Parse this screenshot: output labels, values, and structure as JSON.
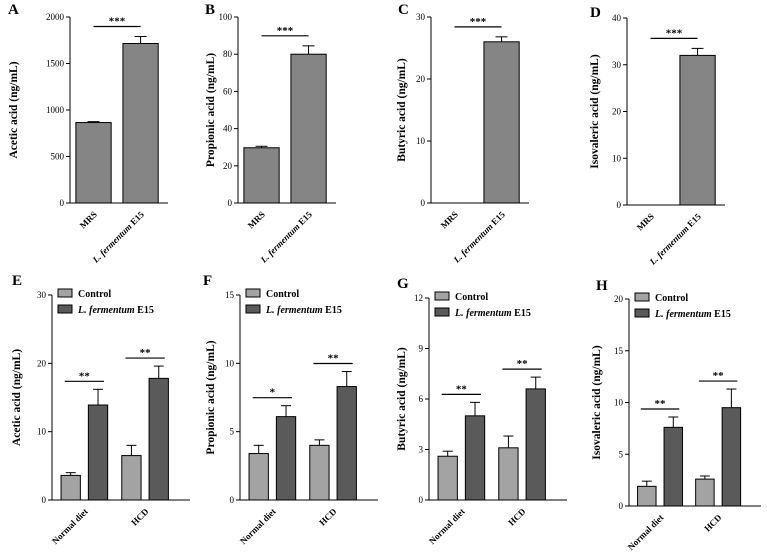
{
  "chart_data": [
    {
      "panel": "A",
      "type": "bar",
      "ylabel": "Acetic acid (ng/mL)",
      "ylim": [
        0,
        2000
      ],
      "yticks": [
        0,
        500,
        1000,
        1500,
        2000
      ],
      "categories": [
        "MRS",
        "L. fermentum E15"
      ],
      "values": [
        865,
        1715
      ],
      "errors": [
        10,
        75
      ],
      "significance": [
        {
          "from": 0,
          "to": 1,
          "label": "***"
        }
      ],
      "color": "#858585"
    },
    {
      "panel": "B",
      "type": "bar",
      "ylabel": "Propionic acid (ng/mL)",
      "ylim": [
        0,
        100
      ],
      "yticks": [
        0,
        20,
        40,
        60,
        80,
        100
      ],
      "categories": [
        "MRS",
        "L. fermentum E15"
      ],
      "values": [
        29.7,
        80
      ],
      "errors": [
        0.8,
        4.5
      ],
      "significance": [
        {
          "from": 0,
          "to": 1,
          "label": "***"
        }
      ],
      "color": "#858585"
    },
    {
      "panel": "C",
      "type": "bar",
      "ylabel": "Butyric acid (ng/mL)",
      "ylim": [
        0,
        30
      ],
      "yticks": [
        0,
        10,
        20,
        30
      ],
      "categories": [
        "MRS",
        "L. fermentum E15"
      ],
      "values": [
        0,
        26
      ],
      "errors": [
        0,
        0.8
      ],
      "significance": [
        {
          "from": 0,
          "to": 1,
          "label": "***"
        }
      ],
      "color": "#858585"
    },
    {
      "panel": "D",
      "type": "bar",
      "ylabel": "Isovaleric acid (ng/mL)",
      "ylim": [
        0,
        40
      ],
      "yticks": [
        0,
        10,
        20,
        30,
        40
      ],
      "categories": [
        "MRS",
        "L. fermentum E15"
      ],
      "values": [
        0,
        32
      ],
      "errors": [
        0,
        1.5
      ],
      "significance": [
        {
          "from": 0,
          "to": 1,
          "label": "***"
        }
      ],
      "color": "#858585"
    },
    {
      "panel": "E",
      "type": "bar",
      "ylabel": "Acetic acid (ng/mL)",
      "ylim": [
        0,
        30
      ],
      "yticks": [
        0,
        10,
        20,
        30
      ],
      "categories": [
        "Normal diet",
        "HCD"
      ],
      "series": [
        {
          "name": "Control",
          "values": [
            3.6,
            6.5
          ],
          "errors": [
            0.4,
            1.5
          ],
          "color": "#a3a3a3"
        },
        {
          "name": "L. fermentum E15",
          "values": [
            13.9,
            17.8
          ],
          "errors": [
            2.3,
            1.8
          ],
          "color": "#5a5a5a"
        }
      ],
      "significance": [
        "**",
        "**"
      ],
      "legend": "top-left"
    },
    {
      "panel": "F",
      "type": "bar",
      "ylabel": "Propionic acid (ng/mL)",
      "ylim": [
        0,
        15
      ],
      "yticks": [
        0,
        5,
        10,
        15
      ],
      "categories": [
        "Normal diet",
        "HCD"
      ],
      "series": [
        {
          "name": "Control",
          "values": [
            3.4,
            4.0
          ],
          "errors": [
            0.6,
            0.4
          ],
          "color": "#a3a3a3"
        },
        {
          "name": "L. fermentum E15",
          "values": [
            6.1,
            8.3
          ],
          "errors": [
            0.8,
            1.1
          ],
          "color": "#5a5a5a"
        }
      ],
      "significance": [
        "*",
        "**"
      ],
      "legend": "top-left"
    },
    {
      "panel": "G",
      "type": "bar",
      "ylabel": "Butyric acid (ng/mL)",
      "ylim": [
        0,
        12
      ],
      "yticks": [
        0,
        3,
        6,
        9,
        12
      ],
      "categories": [
        "Normal diet",
        "HCD"
      ],
      "series": [
        {
          "name": "Control",
          "values": [
            2.6,
            3.1
          ],
          "errors": [
            0.3,
            0.7
          ],
          "color": "#a3a3a3"
        },
        {
          "name": "L. fermentum E15",
          "values": [
            5.0,
            6.6
          ],
          "errors": [
            0.8,
            0.7
          ],
          "color": "#5a5a5a"
        }
      ],
      "significance": [
        "**",
        "**"
      ],
      "legend": "top-left"
    },
    {
      "panel": "H",
      "type": "bar",
      "ylabel": "Isovaleric acid (ng/mL)",
      "ylim": [
        0,
        20
      ],
      "yticks": [
        0,
        5,
        10,
        15,
        20
      ],
      "categories": [
        "Normal diet",
        "HCD"
      ],
      "series": [
        {
          "name": "Control",
          "values": [
            1.9,
            2.6
          ],
          "errors": [
            0.5,
            0.3
          ],
          "color": "#a3a3a3"
        },
        {
          "name": "L. fermentum E15",
          "values": [
            7.6,
            9.5
          ],
          "errors": [
            1.0,
            1.8
          ],
          "color": "#5a5a5a"
        }
      ],
      "significance": [
        "**",
        "**"
      ],
      "legend": "top-left"
    }
  ]
}
